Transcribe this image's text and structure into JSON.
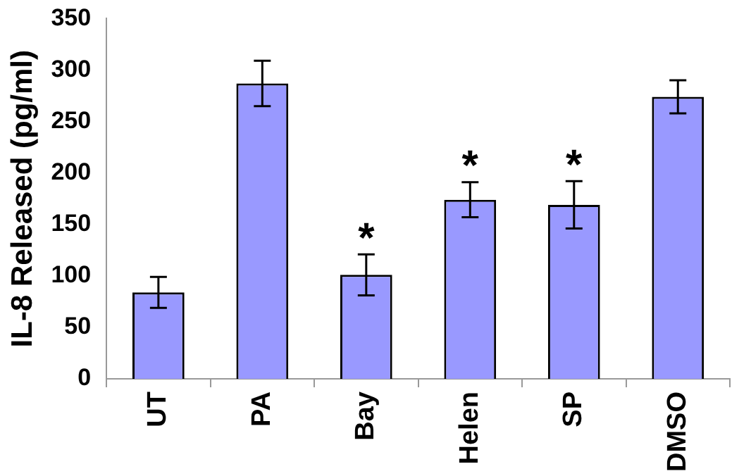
{
  "chart_data": {
    "type": "bar",
    "ylabel": "IL-8 Released (pg/ml)",
    "categories": [
      "UT",
      "PA",
      "Bay",
      "Helen",
      "SP",
      "DMSO"
    ],
    "values": [
      84,
      287,
      101,
      174,
      169,
      274
    ],
    "errors": [
      15,
      22,
      20,
      17,
      23,
      16
    ],
    "color": "#9999ff",
    "ylim": [
      0,
      350
    ],
    "yticks": [
      0,
      50,
      100,
      150,
      200,
      250,
      300,
      350
    ],
    "grid": false,
    "legend": false,
    "annotations": [
      {
        "text": "*",
        "x": "Bay",
        "y": 101
      },
      {
        "text": "*",
        "x": "Helen",
        "y": 174
      },
      {
        "text": "*",
        "x": "SP",
        "y": 169
      }
    ]
  }
}
